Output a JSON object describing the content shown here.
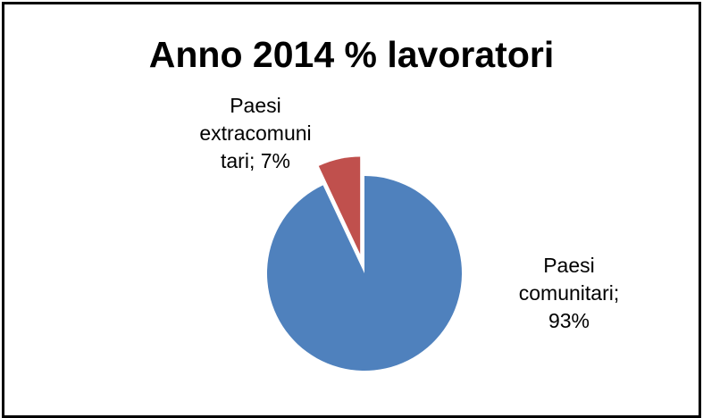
{
  "chart_data": {
    "type": "pie",
    "title": "Anno 2014 % lavoratori",
    "slices": [
      {
        "label_lines": [
          "Paesi",
          "comunitari;",
          "93%"
        ],
        "category": "Paesi comunitari",
        "value": 93,
        "color": "#4f81bd"
      },
      {
        "label_lines": [
          "Paesi",
          "extracomuni",
          "tari; 7%"
        ],
        "category": "Paesi extracomunitari",
        "value": 7,
        "color": "#c0504d"
      }
    ],
    "legend": "none"
  }
}
